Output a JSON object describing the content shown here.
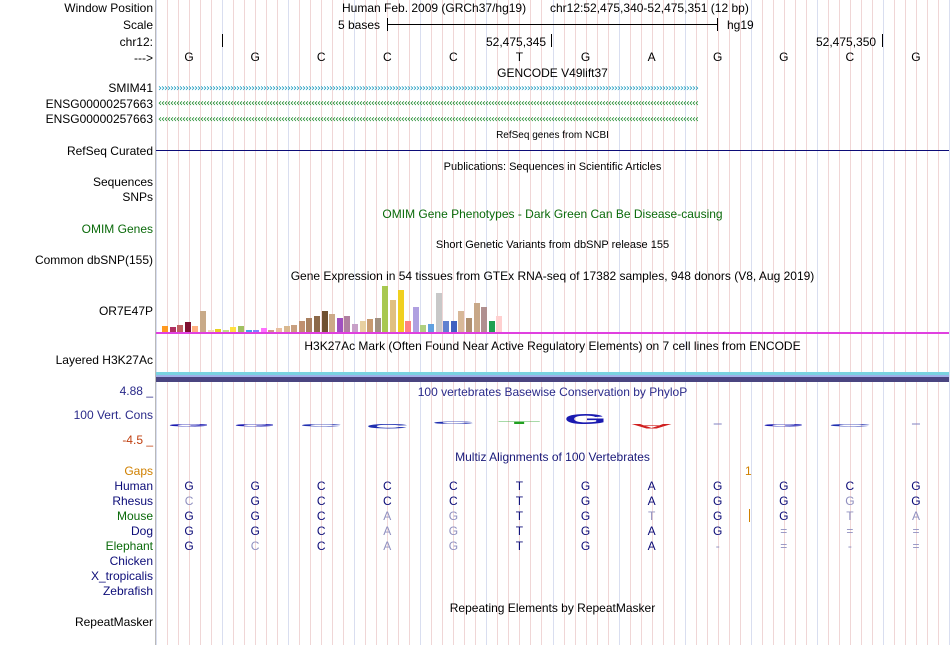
{
  "header": {
    "window_position_label": "Window Position",
    "assembly_text": "Human Feb. 2009 (GRCh37/hg19)",
    "position_text": "chr12:52,475,340-52,475,351 (12 bp)",
    "scale_label": "Scale",
    "scale_text": "5 bases",
    "scale_db": "hg19",
    "chrom_label": "chr12:",
    "coord1": "52,475,345",
    "coord2": "52,475,350",
    "strand_label": "--->"
  },
  "reference_bases": [
    "G",
    "G",
    "C",
    "C",
    "C",
    "T",
    "G",
    "A",
    "G",
    "G",
    "C",
    "G"
  ],
  "gencode": {
    "title": "GENCODE V49lift37",
    "genes": [
      {
        "name": "SMIM41",
        "color": "#1a9bbf",
        "direction": "forward"
      },
      {
        "name": "ENSG00000257663",
        "color": "#1a8a2a",
        "direction": "reverse"
      },
      {
        "name": "ENSG00000257663",
        "color": "#1a8a2a",
        "direction": "reverse"
      }
    ]
  },
  "refseq": {
    "title": "RefSeq genes from NCBI",
    "label": "RefSeq Curated",
    "color": "#0c0c78"
  },
  "publications": {
    "title": "Publications: Sequences in Scientific Articles",
    "label1": "Sequences",
    "label2": "SNPs"
  },
  "omim": {
    "title": "OMIM Gene Phenotypes - Dark Green Can Be Disease-causing",
    "label": "OMIM Genes",
    "color": "#0a6a0a"
  },
  "dbsnp": {
    "title": "Short Genetic Variants from dbSNP release 155",
    "label": "Common dbSNP(155)"
  },
  "gtex": {
    "title": "Gene Expression in 54 tissues from GTEx RNA-seq of 17382 samples, 948 donors (V8, Aug 2019)",
    "label": "OR7E47P",
    "values": [
      0.12,
      0.1,
      0.15,
      0.22,
      0.12,
      0.45,
      0.05,
      0.07,
      0.05,
      0.1,
      0.12,
      0.05,
      0.05,
      0.08,
      0.04,
      0.08,
      0.12,
      0.15,
      0.25,
      0.3,
      0.35,
      0.45,
      0.4,
      0.3,
      0.35,
      0.18,
      0.25,
      0.28,
      0.3,
      1.0,
      0.7,
      0.92,
      0.25,
      0.55,
      0.15,
      0.18,
      0.85,
      0.25,
      0.25,
      0.45,
      0.3,
      0.62,
      0.55,
      0.25,
      0.35
    ],
    "colors": [
      "#ff9a20",
      "#b03060",
      "#c06060",
      "#801030",
      "#ffb080",
      "#c8aa88",
      "#f0e0b0",
      "#e8d020",
      "#c0e080",
      "#ffe040",
      "#a0c060",
      "#40a0f0",
      "#8080ff",
      "#ff70ff",
      "#cc9a88",
      "#e8c0a0",
      "#d8b890",
      "#c8a080",
      "#c09070",
      "#a88060",
      "#8c6a4a",
      "#705030",
      "#ccaa88",
      "#a050c0",
      "#b080a0",
      "#c8a0c8",
      "#e8d0a0",
      "#c89a70",
      "#a09080",
      "#a8c850",
      "#e0c080",
      "#f0d020",
      "#ff8080",
      "#b0a0e0",
      "#b0d080",
      "#60a0e0",
      "#c8c8c8",
      "#6080d0",
      "#4060c0",
      "#d8b898",
      "#b09070",
      "#c8a888",
      "#b09090",
      "#20a050",
      "#ffd0d0"
    ]
  },
  "h3k27ac": {
    "title": "H3K27Ac Mark (Often Found Near Active Regulatory Elements) on 7 cell lines from ENCODE",
    "label": "Layered H3K27Ac"
  },
  "conservation": {
    "title": "100 vertebrates Basewise Conservation by PhyloP",
    "label": "100 Vert. Cons",
    "max_label": "4.88 _",
    "min_label": "-4.5 _",
    "values": [
      -0.2,
      -0.3,
      -0.4,
      -0.9,
      0.05,
      0.05,
      2.2,
      -0.9,
      0.0,
      -0.3,
      -0.3,
      0.0
    ]
  },
  "multiz": {
    "title": "Multiz Alignments of 100 Vertebrates",
    "gaps_label": "Gaps",
    "gap_marker": "1",
    "species": [
      {
        "name": "Human",
        "bases": [
          "G",
          "G",
          "C",
          "C",
          "C",
          "T",
          "G",
          "A",
          "G",
          "G",
          "C",
          "G"
        ]
      },
      {
        "name": "Rhesus",
        "bases": [
          "C",
          "G",
          "C",
          "C",
          "C",
          "T",
          "G",
          "A",
          "G",
          "G",
          "G",
          "G"
        ]
      },
      {
        "name": "Mouse",
        "bases": [
          "G",
          "G",
          "C",
          "A",
          "G",
          "T",
          "G",
          "T",
          "G",
          "G",
          "T",
          "A"
        ]
      },
      {
        "name": "Dog",
        "bases": [
          "G",
          "G",
          "C",
          "A",
          "G",
          "T",
          "G",
          "A",
          "G",
          "=",
          "=",
          "="
        ]
      },
      {
        "name": "Elephant",
        "bases": [
          "G",
          "C",
          "C",
          "A",
          "G",
          "T",
          "G",
          "A",
          "-",
          "=",
          "-",
          "="
        ]
      },
      {
        "name": "Chicken",
        "bases": []
      },
      {
        "name": "X_tropicalis",
        "bases": []
      },
      {
        "name": "Zebrafish",
        "bases": []
      }
    ]
  },
  "repeatmasker": {
    "title": "Repeating Elements by RepeatMasker",
    "label": "RepeatMasker"
  }
}
